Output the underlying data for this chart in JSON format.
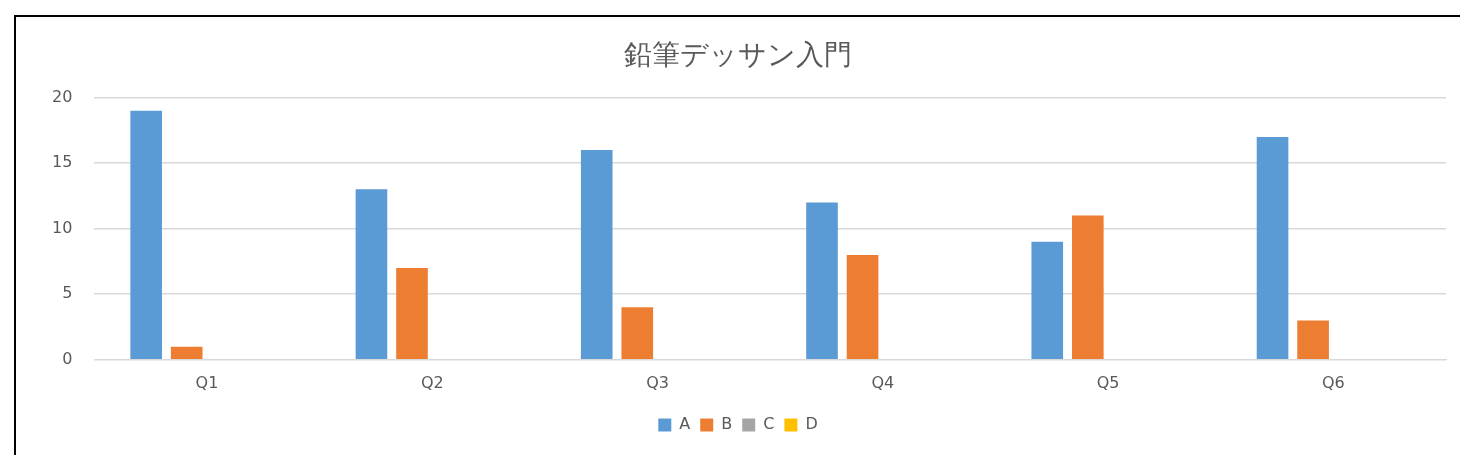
{
  "chart_data": {
    "type": "bar",
    "title": "鉛筆デッサン入門",
    "categories": [
      "Q1",
      "Q2",
      "Q3",
      "Q4",
      "Q5",
      "Q6"
    ],
    "series": [
      {
        "name": "A",
        "color": "#5b9bd5",
        "values": [
          19,
          13,
          16,
          12,
          9,
          17
        ]
      },
      {
        "name": "B",
        "color": "#ed7d31",
        "values": [
          1,
          7,
          4,
          8,
          11,
          3
        ]
      },
      {
        "name": "C",
        "color": "#a5a5a5",
        "values": [
          null,
          null,
          null,
          null,
          null,
          null
        ]
      },
      {
        "name": "D",
        "color": "#ffc000",
        "values": [
          null,
          null,
          null,
          null,
          null,
          null
        ]
      }
    ],
    "ylim": [
      0,
      20
    ],
    "yticks": [
      0,
      5,
      10,
      15,
      20
    ],
    "grid": "y",
    "legend": "bottom"
  }
}
